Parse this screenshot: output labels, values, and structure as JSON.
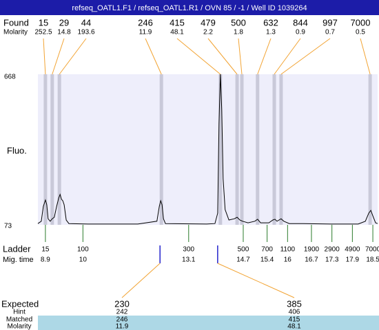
{
  "header": {
    "title": "refseq_OATL1.F1 / refseq_OATL1.R1 / OVN 85 / -1 / Well ID 1039264"
  },
  "chart_data": {
    "type": "electropherogram",
    "y_label": "Fluo.",
    "ylim": [
      73,
      668
    ],
    "yticks": [
      73,
      668
    ],
    "xlim": [
      8.68,
      18.64
    ],
    "trace": {
      "x": [
        8.68,
        8.78,
        8.84,
        8.9,
        8.94,
        8.98,
        9.04,
        9.1,
        9.16,
        9.23,
        9.29,
        9.33,
        9.37,
        9.41,
        9.45,
        9.51,
        9.59,
        10.2,
        11.61,
        12.17,
        12.24,
        12.28,
        12.32,
        12.36,
        12.42,
        13.63,
        13.87,
        13.95,
        13.99,
        14.03,
        14.07,
        14.11,
        14.17,
        14.28,
        14.44,
        14.52,
        14.6,
        14.68,
        14.84,
        15.04,
        15.12,
        15.21,
        15.45,
        15.57,
        15.63,
        15.69,
        15.81,
        15.89,
        16.05,
        16.46,
        17.27,
        18.07,
        18.28,
        18.38,
        18.44,
        18.5,
        18.58,
        18.64
      ],
      "y": [
        78,
        87,
        146,
        171,
        152,
        97,
        87,
        97,
        103,
        146,
        179,
        193,
        174,
        168,
        152,
        92,
        78,
        76,
        76,
        87,
        146,
        168,
        152,
        97,
        78,
        76,
        78,
        119,
        472,
        668,
        527,
        255,
        133,
        92,
        97,
        103,
        92,
        87,
        81,
        87,
        95,
        81,
        81,
        92,
        95,
        87,
        97,
        87,
        78,
        78,
        76,
        76,
        87,
        119,
        130,
        108,
        81,
        78
      ]
    },
    "found": {
      "label": "Found",
      "molarity_label": "Molarity",
      "sizes": [
        15,
        29,
        44,
        246,
        415,
        479,
        500,
        632,
        844,
        997,
        7000
      ],
      "molarity": [
        252.5,
        14.8,
        193.6,
        11.9,
        48.1,
        2.2,
        1.8,
        1.3,
        0.9,
        0.7,
        0.5
      ],
      "times": [
        8.9,
        9.1,
        9.31,
        12.3,
        14.03,
        14.52,
        14.66,
        15.12,
        15.61,
        15.81,
        18.42
      ]
    },
    "ladder": {
      "label": "Ladder",
      "time_label": "Mig. time",
      "sizes": [
        15,
        100,
        300,
        500,
        700,
        1100,
        1900,
        2900,
        4900,
        7000
      ],
      "times": [
        8.9,
        10,
        13.1,
        14.7,
        15.4,
        16,
        16.7,
        17.3,
        17.9,
        18.5
      ]
    },
    "expected": {
      "label": "Expected",
      "hint_label": "Hint",
      "matched_label": "Matched",
      "molarity_label": "Molarity",
      "sizes": [
        230,
        385
      ],
      "times": [
        12.26,
        13.95
      ],
      "hint": [
        242,
        406
      ],
      "matched": [
        246,
        415
      ],
      "molarity": [
        11.9,
        48.1
      ]
    }
  }
}
